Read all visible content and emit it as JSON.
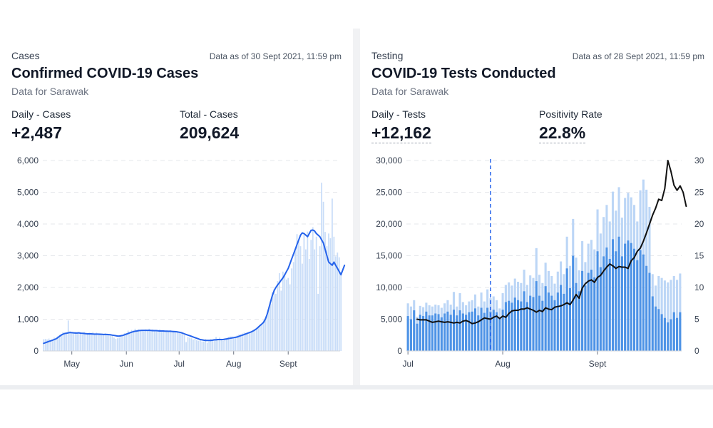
{
  "cases_panel": {
    "kicker": "Cases",
    "as_of": "Data as of 30 Sept 2021, 11:59 pm",
    "title": "Confirmed COVID-19 Cases",
    "subtitle": "Data for Sarawak",
    "stat1": {
      "label": "Daily - Cases",
      "value": "+2,487"
    },
    "stat2": {
      "label": "Total - Cases",
      "value": "209,624"
    }
  },
  "tests_panel": {
    "kicker": "Testing",
    "as_of": "Data as of 28 Sept 2021, 11:59 pm",
    "title": "COVID-19 Tests Conducted",
    "subtitle": "Data for Sarawak",
    "stat1": {
      "label": "Daily - Tests",
      "value": "+12,162"
    },
    "stat2": {
      "label": "Positivity Rate",
      "value": "22.8%"
    }
  },
  "colors": {
    "cases_bar": "#c9ddf8",
    "cases_line": "#2563eb",
    "tests_bar_dark": "#4e93e6",
    "tests_bar_light": "#bcd6f6",
    "positivity_line": "#111111",
    "marker": "#2563eb"
  },
  "chart_data": [
    {
      "type": "bar",
      "x_start": "2021-04-15",
      "x_end": "2021-09-30",
      "ylim": [
        0,
        6000
      ],
      "yticks": [
        "0",
        "1,000",
        "2,000",
        "3,000",
        "4,000",
        "5,000",
        "6,000"
      ],
      "xticks": [
        {
          "date": "2021-05-01",
          "label": "May"
        },
        {
          "date": "2021-06-01",
          "label": "Jun"
        },
        {
          "date": "2021-07-01",
          "label": "Jul"
        },
        {
          "date": "2021-08-01",
          "label": "Aug"
        },
        {
          "date": "2021-09-01",
          "label": "Sept"
        }
      ],
      "grid": true,
      "series": [
        {
          "kind": "bar",
          "values": [
            370,
            380,
            360,
            390,
            340,
            330,
            420,
            400,
            460,
            510,
            540,
            600,
            540,
            560,
            960,
            620,
            580,
            560,
            600,
            590,
            540,
            580,
            520,
            600,
            560,
            540,
            580,
            520,
            600,
            540,
            580,
            520,
            560,
            540,
            530,
            560,
            520,
            520,
            490,
            500,
            420,
            380,
            400,
            420,
            460,
            500,
            560,
            560,
            640,
            580,
            660,
            640,
            700,
            660,
            680,
            640,
            660,
            620,
            680,
            660,
            700,
            640,
            680,
            620,
            620,
            640,
            680,
            600,
            660,
            640,
            620,
            600,
            650,
            610,
            640,
            600,
            630,
            600,
            560,
            560,
            500,
            280,
            440,
            420,
            400,
            360,
            380,
            340,
            320,
            340,
            300,
            300,
            380,
            260,
            300,
            380,
            340,
            360,
            440,
            380,
            420,
            380,
            320,
            380,
            410,
            440,
            460,
            460,
            420,
            440,
            500,
            520,
            520,
            550,
            580,
            540,
            560,
            580,
            600,
            640,
            680,
            700,
            760,
            820,
            860,
            960,
            1040,
            1160,
            1320,
            1480,
            1850,
            1950,
            1800,
            2200,
            2450,
            1900,
            2500,
            2400,
            2250,
            2300,
            2100,
            2600,
            2800,
            3150,
            3680,
            3450,
            3300,
            2750,
            3700,
            3200,
            3760,
            2900,
            3500,
            3900,
            3200,
            3600,
            1800,
            3300,
            5300,
            4700,
            3750,
            3300,
            3700,
            3550,
            4800,
            3600,
            2980,
            3100,
            2950,
            2500
          ]
        },
        {
          "kind": "line",
          "values": [
            240,
            260,
            280,
            300,
            320,
            340,
            360,
            380,
            420,
            460,
            500,
            530,
            550,
            560,
            570,
            580,
            575,
            570,
            565,
            565,
            570,
            560,
            555,
            550,
            545,
            540,
            540,
            540,
            535,
            530,
            530,
            530,
            525,
            525,
            520,
            520,
            520,
            515,
            510,
            500,
            490,
            480,
            470,
            470,
            480,
            490,
            510,
            530,
            550,
            570,
            590,
            610,
            620,
            630,
            640,
            645,
            650,
            650,
            650,
            650,
            650,
            645,
            640,
            640,
            640,
            635,
            630,
            630,
            630,
            625,
            625,
            620,
            620,
            615,
            610,
            610,
            600,
            590,
            580,
            560,
            540,
            520,
            500,
            480,
            460,
            440,
            420,
            400,
            380,
            360,
            350,
            340,
            330,
            330,
            330,
            330,
            340,
            350,
            350,
            360,
            360,
            360,
            360,
            370,
            380,
            390,
            400,
            410,
            420,
            430,
            440,
            460,
            480,
            500,
            520,
            540,
            560,
            580,
            600,
            630,
            660,
            700,
            750,
            800,
            850,
            900,
            1000,
            1150,
            1350,
            1550,
            1750,
            1900,
            2000,
            2080,
            2150,
            2230,
            2300,
            2400,
            2500,
            2600,
            2750,
            2900,
            3050,
            3200,
            3350,
            3500,
            3650,
            3720,
            3700,
            3650,
            3600,
            3700,
            3800,
            3810,
            3780,
            3700,
            3650,
            3600,
            3500,
            3400,
            3200,
            3000,
            2800,
            2750,
            2700,
            2800,
            2700,
            2600,
            2500,
            2400,
            2550,
            2700
          ]
        }
      ]
    },
    {
      "type": "bar",
      "x_start": "2021-07-01",
      "x_end": "2021-09-28",
      "ylim": [
        0,
        30000
      ],
      "y2lim": [
        0,
        30
      ],
      "yticks": [
        "0",
        "5,000",
        "10,000",
        "15,000",
        "20,000",
        "25,000",
        "30,000"
      ],
      "y2ticks": [
        "0",
        "5",
        "10",
        "15",
        "20",
        "25",
        "30"
      ],
      "xticks": [
        {
          "date": "2021-07-01",
          "label": "Jul"
        },
        {
          "date": "2021-08-01",
          "label": "Aug"
        },
        {
          "date": "2021-09-01",
          "label": "Sept"
        }
      ],
      "marker_date": "2021-07-28",
      "grid": true,
      "series": [
        {
          "kind": "bar",
          "values": [
            7500,
            7000,
            8000,
            5400,
            7100,
            6900,
            7600,
            7200,
            7000,
            7300,
            7200,
            6800,
            7500,
            8000,
            7300,
            9300,
            7000,
            9100,
            7700,
            7200,
            7800,
            8000,
            8900,
            7000,
            9200,
            7800,
            9700,
            8300,
            8600,
            8000,
            6700,
            9100,
            10400,
            10800,
            10300,
            11400,
            10900,
            10700,
            12800,
            10400,
            11900,
            11500,
            16200,
            12000,
            10700,
            13900,
            12600,
            11800,
            10600,
            12500,
            14100,
            12100,
            18000,
            13400,
            20800,
            14700,
            12700,
            17300,
            14000,
            16900,
            17500,
            16000,
            22300,
            18500,
            21100,
            23000,
            20400,
            25100,
            22100,
            25800,
            21000,
            24100,
            24900,
            24200,
            23000,
            20400,
            25300,
            27000,
            25400,
            22700,
            12100,
            10300,
            11800,
            11500,
            11100,
            10800,
            11200,
            11800,
            11200,
            12200
          ]
        },
        {
          "kind": "bar",
          "values": [
            5500,
            5000,
            6400,
            4300,
            5700,
            5500,
            6200,
            5600,
            5600,
            5900,
            5800,
            5300,
            5900,
            6200,
            5700,
            6500,
            5600,
            6400,
            5900,
            5700,
            6100,
            6200,
            6700,
            5600,
            6800,
            6000,
            6800,
            6200,
            6500,
            6100,
            5200,
            6500,
            7700,
            7900,
            7600,
            8400,
            8000,
            7800,
            9400,
            7700,
            8700,
            8500,
            11000,
            8700,
            7900,
            10200,
            9200,
            8700,
            8000,
            9200,
            10400,
            9000,
            13000,
            9900,
            15000,
            10700,
            9400,
            12600,
            10300,
            12300,
            12800,
            11600,
            15700,
            13200,
            14900,
            16300,
            14500,
            17600,
            15700,
            18000,
            14900,
            16900,
            17400,
            17000,
            16100,
            14300,
            15900,
            15200,
            13400,
            12300,
            8600,
            7000,
            6600,
            5800,
            5200,
            4500,
            5000,
            6100,
            5200,
            6100
          ]
        },
        {
          "kind": "line",
          "from_index": 3,
          "values": [
            5.0,
            4.9,
            4.9,
            4.9,
            4.7,
            4.5,
            4.6,
            4.7,
            4.6,
            4.5,
            4.6,
            4.5,
            4.4,
            4.5,
            4.4,
            4.7,
            4.8,
            4.6,
            4.3,
            4.4,
            4.6,
            4.9,
            5.2,
            5.1,
            5.0,
            5.3,
            5.5,
            5.1,
            5.5,
            5.3,
            5.9,
            6.3,
            6.4,
            6.4,
            6.6,
            6.6,
            6.8,
            6.6,
            6.4,
            6.1,
            6.4,
            6.2,
            6.8,
            6.6,
            6.5,
            6.9,
            7.0,
            7.1,
            7.3,
            7.6,
            7.3,
            8.0,
            8.9,
            8.3,
            9.9,
            10.6,
            11.0,
            11.2,
            10.8,
            11.6,
            11.9,
            12.6,
            13.2,
            13.7,
            13.4,
            13.0,
            13.3,
            13.2,
            13.2,
            13.0,
            14.2,
            14.7,
            15.7,
            16.2,
            17.3,
            18.6,
            20.0,
            21.4,
            22.5,
            23.9,
            23.7,
            25.6,
            30.0,
            28.3,
            26.1,
            25.3,
            26.0,
            25.0,
            22.8
          ]
        }
      ]
    }
  ]
}
